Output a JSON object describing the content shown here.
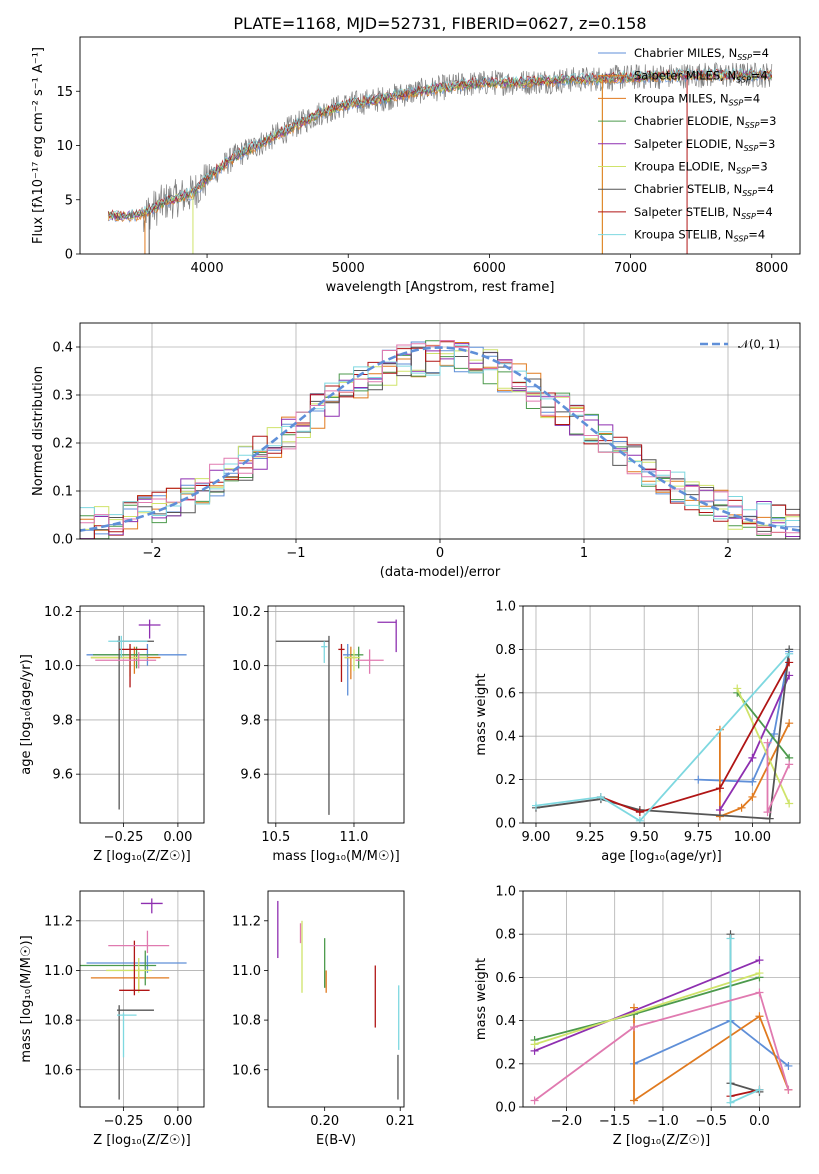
{
  "title": "PLATE=1168, MJD=52731, FIBERID=0627, z=0.158",
  "colors": {
    "Chabrier MILES": "#5f8fd8",
    "Salpeter MILES": "#e07a1f",
    "Kroupa MILES": "#e07a1f",
    "Chabrier ELODIE": "#4c9a4c",
    "Salpeter ELODIE": "#8e2fb0",
    "Kroupa ELODIE": "#cfe36a",
    "Chabrier STELIB": "#555555",
    "Salpeter STELIB": "#b01515",
    "Kroupa STELIB": "#7ed8e0",
    "pink": "#e07ab0",
    "data": "#808080",
    "normal": "#5f8fd8"
  },
  "chart_data": [
    {
      "id": "spectrum",
      "type": "line",
      "xlabel": "wavelength [Angstrom, rest frame]",
      "ylabel": "Flux [fλ10⁻¹⁷ erg cm⁻² s⁻¹ A⁻¹]",
      "xlim": [
        3100,
        8200
      ],
      "ylim": [
        0,
        20
      ],
      "xticks": [
        4000,
        5000,
        6000,
        7000,
        8000
      ],
      "yticks": [
        0,
        5,
        10,
        15
      ],
      "grid": false,
      "legend_position": "top-right",
      "legend": [
        {
          "text": "Chabrier MILES, N",
          "sub": "SSP",
          "tail": "=4",
          "color": "#5f8fd8"
        },
        {
          "text": "Salpeter MILES, N",
          "sub": "SSP",
          "tail": "=4",
          "color": "#e07a1f"
        },
        {
          "text": "Kroupa MILES, N",
          "sub": "SSP",
          "tail": "=4",
          "color": "#e07a1f"
        },
        {
          "text": "Chabrier ELODIE, N",
          "sub": "SSP",
          "tail": "=3",
          "color": "#4c9a4c"
        },
        {
          "text": "Salpeter ELODIE, N",
          "sub": "SSP",
          "tail": "=3",
          "color": "#8e2fb0"
        },
        {
          "text": "Kroupa ELODIE, N",
          "sub": "SSP",
          "tail": "=3",
          "color": "#cfe36a"
        },
        {
          "text": "Chabrier STELIB, N",
          "sub": "SSP",
          "tail": "=4",
          "color": "#555555"
        },
        {
          "text": "Salpeter STELIB, N",
          "sub": "SSP",
          "tail": "=4",
          "color": "#b01515"
        },
        {
          "text": "Kroupa STELIB, N",
          "sub": "SSP",
          "tail": "=4",
          "color": "#7ed8e0"
        }
      ],
      "continuum": {
        "x": [
          3300,
          3500,
          3600,
          3700,
          3800,
          3900,
          4000,
          4200,
          4500,
          4800,
          5000,
          5200,
          5500,
          5800,
          6000,
          6200,
          6500,
          7000,
          7500,
          8000
        ],
        "y": [
          3.5,
          3.6,
          4.0,
          4.8,
          5.2,
          5.6,
          7.0,
          9.0,
          11.0,
          13.0,
          13.8,
          14.2,
          15.0,
          15.6,
          15.8,
          15.8,
          16.0,
          16.3,
          16.5,
          16.5
        ]
      }
    },
    {
      "id": "residuals",
      "type": "histogram",
      "xlabel": "(data-model)/error",
      "ylabel": "Normed distribution",
      "xlim": [
        -2.5,
        2.5
      ],
      "ylim": [
        0,
        0.45
      ],
      "xticks": [
        -2,
        -1,
        0,
        1,
        2
      ],
      "yticks": [
        0.0,
        0.1,
        0.2,
        0.3,
        0.4
      ],
      "grid": true,
      "legend_position": "top-right",
      "legend_label": "𝒩(0, 1)",
      "bin_width": 0.1
    },
    {
      "id": "age-Z",
      "type": "scatter",
      "xlabel": "Z [log₁₀(Z/Z☉)]",
      "ylabel": "age  [log₁₀(age/yr)]",
      "xlim": [
        -0.45,
        0.12
      ],
      "ylim": [
        9.42,
        10.22
      ],
      "xticks": [
        -0.25,
        0.0
      ],
      "yticks": [
        9.6,
        9.8,
        10.0,
        10.2
      ],
      "grid": true,
      "points": [
        {
          "x": -0.14,
          "y": 10.04,
          "xerr": [
            0.28,
            0.18
          ],
          "yerr": [
            0.04,
            0.04
          ],
          "color": "#5f8fd8"
        },
        {
          "x": -0.2,
          "y": 10.03,
          "xerr": [
            0.2,
            0.12
          ],
          "yerr": [
            0.06,
            0.04
          ],
          "color": "#e07a1f"
        },
        {
          "x": -0.19,
          "y": 10.04,
          "xerr": [
            0.2,
            0.1
          ],
          "yerr": [
            0.05,
            0.03
          ],
          "color": "#4c9a4c"
        },
        {
          "x": -0.13,
          "y": 10.15,
          "xerr": [
            0.05,
            0.05
          ],
          "yerr": [
            0.05,
            0.02
          ],
          "color": "#8e2fb0"
        },
        {
          "x": -0.22,
          "y": 10.03,
          "xerr": [
            0.18,
            0.08
          ],
          "yerr": [
            0.07,
            0.04
          ],
          "color": "#cfe36a"
        },
        {
          "x": -0.27,
          "y": 10.09,
          "xerr": [
            0.01,
            0.16
          ],
          "yerr": [
            0.62,
            0.02
          ],
          "color": "#555555"
        },
        {
          "x": -0.22,
          "y": 10.06,
          "xerr": [
            0.05,
            0.08
          ],
          "yerr": [
            0.14,
            0.02
          ],
          "color": "#b01515"
        },
        {
          "x": -0.26,
          "y": 10.09,
          "xerr": [
            0.06,
            0.12
          ],
          "yerr": [
            0.06,
            0.02
          ],
          "color": "#7ed8e0"
        },
        {
          "x": -0.18,
          "y": 10.02,
          "xerr": [
            0.2,
            0.08
          ],
          "yerr": [
            0.03,
            0.03
          ],
          "color": "#e07ab0"
        }
      ]
    },
    {
      "id": "age-mass",
      "type": "scatter",
      "xlabel": "mass [log₁₀(M/M☉)]",
      "ylabel": "",
      "xlim": [
        10.45,
        11.32
      ],
      "ylim": [
        9.42,
        10.22
      ],
      "xticks": [
        10.5,
        11.0
      ],
      "yticks": [
        9.6,
        9.8,
        10.0,
        10.2
      ],
      "grid": true,
      "points": [
        {
          "x": 10.96,
          "y": 10.04,
          "xerr": [
            0.03,
            0.03
          ],
          "yerr": [
            0.15,
            0.04
          ],
          "color": "#5f8fd8"
        },
        {
          "x": 10.98,
          "y": 10.03,
          "xerr": [
            0.04,
            0.04
          ],
          "yerr": [
            0.08,
            0.04
          ],
          "color": "#e07a1f"
        },
        {
          "x": 11.03,
          "y": 10.04,
          "xerr": [
            0.05,
            0.03
          ],
          "yerr": [
            0.05,
            0.03
          ],
          "color": "#4c9a4c"
        },
        {
          "x": 11.27,
          "y": 10.16,
          "xerr": [
            0.12,
            0.0
          ],
          "yerr": [
            0.11,
            0.01
          ],
          "color": "#8e2fb0"
        },
        {
          "x": 11.0,
          "y": 10.03,
          "xerr": [
            0.06,
            0.04
          ],
          "yerr": [
            0.05,
            0.03
          ],
          "color": "#cfe36a"
        },
        {
          "x": 10.84,
          "y": 10.09,
          "xerr": [
            0.34,
            0.0
          ],
          "yerr": [
            0.64,
            0.02
          ],
          "color": "#555555"
        },
        {
          "x": 10.92,
          "y": 10.06,
          "xerr": [
            0.02,
            0.02
          ],
          "yerr": [
            0.12,
            0.02
          ],
          "color": "#b01515"
        },
        {
          "x": 10.81,
          "y": 10.07,
          "xerr": [
            0.02,
            0.02
          ],
          "yerr": [
            0.06,
            0.02
          ],
          "color": "#7ed8e0"
        },
        {
          "x": 11.1,
          "y": 10.02,
          "xerr": [
            0.09,
            0.09
          ],
          "yerr": [
            0.05,
            0.04
          ],
          "color": "#e07ab0"
        }
      ]
    },
    {
      "id": "weight-age",
      "type": "line",
      "xlabel": "age  [log₁₀(age/yr)]",
      "ylabel": "mass weight",
      "xlim": [
        8.94,
        10.22
      ],
      "ylim": [
        0,
        1
      ],
      "xticks": [
        9.0,
        9.25,
        9.5,
        9.75,
        10.0
      ],
      "yticks": [
        0.0,
        0.2,
        0.4,
        0.6,
        0.8,
        1.0
      ],
      "grid": true,
      "series": [
        {
          "color": "#5f8fd8",
          "x": [
            9.75,
            10.0,
            10.1,
            10.17
          ],
          "y": [
            0.2,
            0.19,
            0.41,
            0.79
          ]
        },
        {
          "color": "#e07a1f",
          "x": [
            9.85,
            9.85,
            9.95,
            10.0,
            10.17
          ],
          "y": [
            0.43,
            0.03,
            0.07,
            0.12,
            0.46
          ]
        },
        {
          "color": "#4c9a4c",
          "x": [
            9.93,
            10.17
          ],
          "y": [
            0.6,
            0.3
          ]
        },
        {
          "color": "#8e2fb0",
          "x": [
            9.85,
            10.0,
            10.17
          ],
          "y": [
            0.06,
            0.3,
            0.68
          ]
        },
        {
          "color": "#cfe36a",
          "x": [
            9.93,
            10.17
          ],
          "y": [
            0.62,
            0.09
          ]
        },
        {
          "color": "#555555",
          "x": [
            9.0,
            9.3,
            9.48,
            10.08,
            10.17
          ],
          "y": [
            0.07,
            0.11,
            0.06,
            0.02,
            0.8
          ]
        },
        {
          "color": "#b01515",
          "x": [
            9.3,
            9.48,
            9.85,
            10.17
          ],
          "y": [
            0.12,
            0.05,
            0.16,
            0.74
          ]
        },
        {
          "color": "#7ed8e0",
          "x": [
            9.0,
            9.3,
            9.48,
            10.17
          ],
          "y": [
            0.08,
            0.12,
            0.01,
            0.78
          ]
        },
        {
          "color": "#e07ab0",
          "x": [
            10.07,
            10.07,
            10.17
          ],
          "y": [
            0.37,
            0.05,
            0.27
          ]
        }
      ]
    },
    {
      "id": "mass-Z",
      "type": "scatter",
      "xlabel": "Z [log₁₀(Z/Z☉)]",
      "ylabel": "mass [log₁₀(M/M☉)]",
      "xlim": [
        -0.45,
        0.12
      ],
      "ylim": [
        10.45,
        11.32
      ],
      "xticks": [
        -0.25,
        0.0
      ],
      "yticks": [
        10.6,
        10.8,
        11.0,
        11.2
      ],
      "grid": true,
      "points": [
        {
          "x": -0.14,
          "y": 11.03,
          "xerr": [
            0.28,
            0.18
          ],
          "yerr": [
            0.04,
            0.03
          ],
          "color": "#5f8fd8"
        },
        {
          "x": -0.18,
          "y": 10.97,
          "xerr": [
            0.22,
            0.14
          ],
          "yerr": [
            0.05,
            0.04
          ],
          "color": "#e07a1f"
        },
        {
          "x": -0.15,
          "y": 11.02,
          "xerr": [
            0.3,
            0.05
          ],
          "yerr": [
            0.08,
            0.06
          ],
          "color": "#4c9a4c"
        },
        {
          "x": -0.12,
          "y": 11.27,
          "xerr": [
            0.05,
            0.05
          ],
          "yerr": [
            0.04,
            0.02
          ],
          "color": "#8e2fb0"
        },
        {
          "x": -0.18,
          "y": 11.0,
          "xerr": [
            0.15,
            0.06
          ],
          "yerr": [
            0.09,
            0.05
          ],
          "color": "#cfe36a"
        },
        {
          "x": -0.27,
          "y": 10.84,
          "xerr": [
            0.01,
            0.16
          ],
          "yerr": [
            0.36,
            0.02
          ],
          "color": "#555555"
        },
        {
          "x": -0.2,
          "y": 10.92,
          "xerr": [
            0.07,
            0.07
          ],
          "yerr": [
            0.02,
            0.2
          ],
          "color": "#b01515"
        },
        {
          "x": -0.25,
          "y": 10.82,
          "xerr": [
            0.03,
            0.06
          ],
          "yerr": [
            0.17,
            0.01
          ],
          "color": "#7ed8e0"
        },
        {
          "x": -0.14,
          "y": 11.1,
          "xerr": [
            0.18,
            0.1
          ],
          "yerr": [
            0.03,
            0.06
          ],
          "color": "#e07ab0"
        }
      ]
    },
    {
      "id": "mass-EBV",
      "type": "scatter",
      "xlabel": "E(B-V)",
      "ylabel": "",
      "xlim": [
        0.1925,
        0.2105
      ],
      "ylim": [
        10.45,
        11.32
      ],
      "xticks": [
        0.2,
        0.21
      ],
      "yticks": [
        10.6,
        10.8,
        11.0,
        11.2
      ],
      "grid": false,
      "points": [
        {
          "x": 0.1938,
          "y": 11.17,
          "yerr": [
            0.12,
            0.11
          ],
          "color": "#8e2fb0"
        },
        {
          "x": 0.197,
          "y": 11.05,
          "yerr": [
            0.14,
            0.15
          ],
          "color": "#cfe36a"
        },
        {
          "x": 0.1968,
          "y": 11.14,
          "yerr": [
            0.03,
            0.05
          ],
          "color": "#e07ab0"
        },
        {
          "x": 0.2,
          "y": 11.03,
          "yerr": [
            0.1,
            0.1
          ],
          "color": "#4c9a4c"
        },
        {
          "x": 0.2002,
          "y": 10.96,
          "yerr": [
            0.05,
            0.04
          ],
          "color": "#e07a1f"
        },
        {
          "x": 0.2067,
          "y": 10.9,
          "yerr": [
            0.13,
            0.12
          ],
          "color": "#b01515"
        },
        {
          "x": 0.2098,
          "y": 10.82,
          "yerr": [
            0.14,
            0.12
          ],
          "color": "#7ed8e0"
        },
        {
          "x": 0.2097,
          "y": 10.57,
          "yerr": [
            0.09,
            0.09
          ],
          "color": "#555555"
        }
      ]
    },
    {
      "id": "weight-Z",
      "type": "line",
      "xlabel": "Z [log₁₀(Z/Z☉)]",
      "ylabel": "mass weight",
      "xlim": [
        -2.45,
        0.42
      ],
      "ylim": [
        0,
        1
      ],
      "xticks": [
        -2.0,
        -1.5,
        -1.0,
        -0.5,
        0.0
      ],
      "yticks": [
        0.0,
        0.2,
        0.4,
        0.6,
        0.8,
        1.0
      ],
      "grid": true,
      "series": [
        {
          "color": "#5f8fd8",
          "x": [
            -1.3,
            -0.3,
            0.3
          ],
          "y": [
            0.2,
            0.4,
            0.19
          ]
        },
        {
          "color": "#e07a1f",
          "x": [
            -1.3,
            -1.3,
            0.0,
            0.3
          ],
          "y": [
            0.46,
            0.03,
            0.42,
            0.08
          ]
        },
        {
          "color": "#4c9a4c",
          "x": [
            -2.33,
            -1.3,
            0.0
          ],
          "y": [
            0.31,
            0.43,
            0.6
          ]
        },
        {
          "color": "#8e2fb0",
          "x": [
            -2.33,
            0.0
          ],
          "y": [
            0.26,
            0.68
          ]
        },
        {
          "color": "#cfe36a",
          "x": [
            -2.33,
            0.0
          ],
          "y": [
            0.29,
            0.62
          ]
        },
        {
          "color": "#555555",
          "x": [
            -0.3,
            -0.3,
            0.0
          ],
          "y": [
            0.8,
            0.11,
            0.07
          ]
        },
        {
          "color": "#b01515",
          "x": [
            -0.3,
            0.0
          ],
          "y": [
            0.05,
            0.08
          ]
        },
        {
          "color": "#7ed8e0",
          "x": [
            -0.3,
            -0.3,
            0.0
          ],
          "y": [
            0.78,
            0.02,
            0.08
          ]
        },
        {
          "color": "#e07ab0",
          "x": [
            -2.33,
            -1.3,
            0.0,
            0.3
          ],
          "y": [
            0.03,
            0.37,
            0.53,
            0.08
          ]
        }
      ]
    }
  ]
}
